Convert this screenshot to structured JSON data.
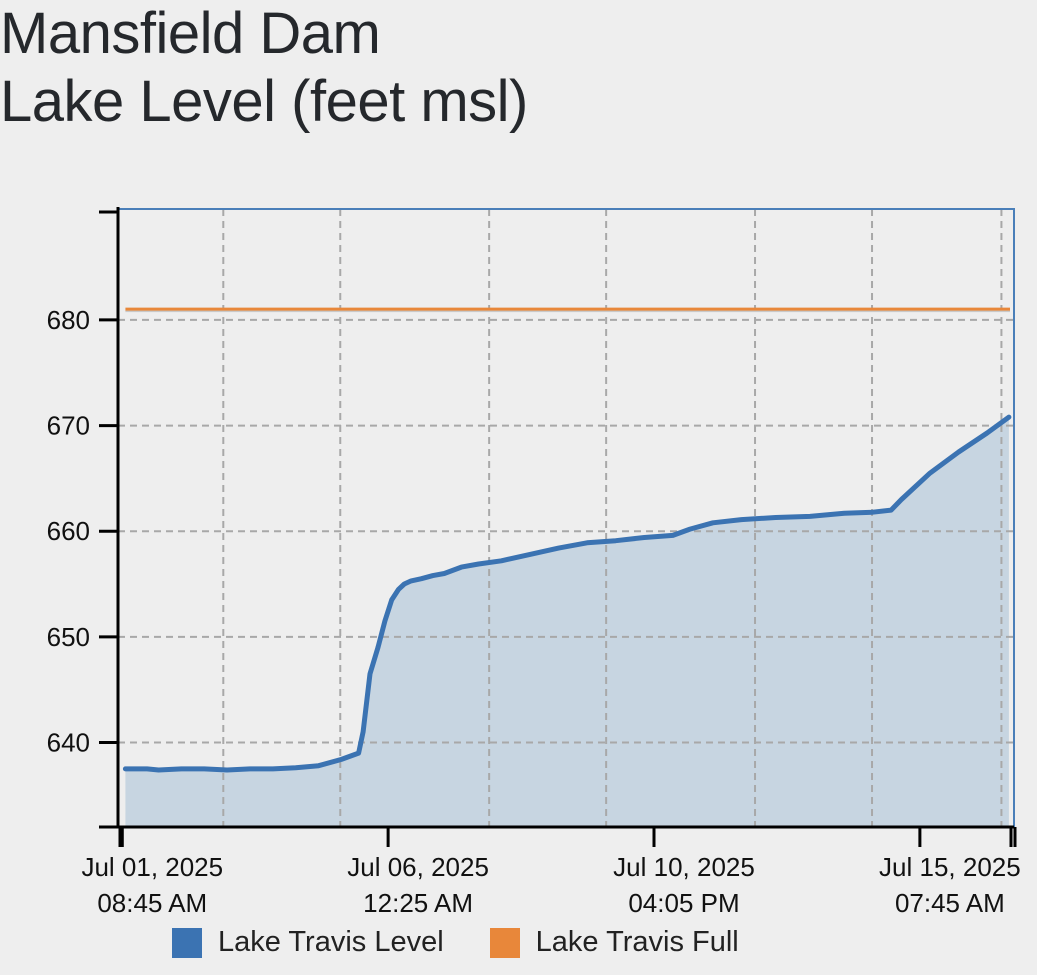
{
  "title": {
    "line1": "Mansfield Dam",
    "line2": "Lake Level (feet msl)"
  },
  "chart_data": {
    "type": "area",
    "title": "Mansfield Dam Lake Level (feet msl)",
    "xlabel": "",
    "ylabel": "",
    "x_unit": "days since Jul 01, 2025 12:00 AM",
    "xlim": [
      0.29,
      15.97
    ],
    "ylim": [
      632,
      690.5
    ],
    "y_ticks": [
      640,
      650,
      660,
      670,
      680
    ],
    "x_ticks": [
      {
        "x": 0.365,
        "line1": "Jul 01, 2025",
        "line2": "08:45 AM"
      },
      {
        "x": 5.017,
        "line1": "Jul 06, 2025",
        "line2": "12:25 AM"
      },
      {
        "x": 9.67,
        "line1": "Jul 10, 2025",
        "line2": "04:05 PM"
      },
      {
        "x": 14.323,
        "line1": "Jul 15, 2025",
        "line2": "07:45 AM"
      }
    ],
    "grid": true,
    "legend_position": "bottom",
    "colors": {
      "level": "#3b73b2",
      "level_fill": "#c7d5e1",
      "full": "#e8873a",
      "frame": "#4a7fb9",
      "grid": "#a8a8a8"
    },
    "series": [
      {
        "name": "Lake Travis Level",
        "x": [
          0.42,
          0.8,
          1.0,
          1.4,
          1.8,
          2.2,
          2.6,
          3.0,
          3.4,
          3.8,
          4.2,
          4.5,
          4.58,
          4.7,
          4.84,
          4.96,
          5.08,
          5.2,
          5.3,
          5.42,
          5.6,
          5.8,
          6.0,
          6.3,
          6.6,
          7.0,
          7.5,
          8.0,
          8.5,
          9.0,
          9.5,
          10.0,
          10.3,
          10.7,
          11.2,
          11.8,
          12.4,
          13.0,
          13.5,
          13.82,
          14.0,
          14.5,
          15.0,
          15.5,
          15.88
        ],
        "values": [
          637.5,
          637.5,
          637.4,
          637.5,
          637.5,
          637.4,
          637.5,
          637.5,
          637.6,
          637.8,
          638.4,
          639.0,
          641.0,
          646.5,
          649.0,
          651.5,
          653.5,
          654.5,
          655.0,
          655.3,
          655.5,
          655.8,
          656.0,
          656.6,
          656.9,
          657.2,
          657.8,
          658.4,
          658.9,
          659.1,
          659.4,
          659.6,
          660.2,
          660.8,
          661.1,
          661.3,
          661.4,
          661.7,
          661.8,
          662.0,
          663.0,
          665.5,
          667.5,
          669.3,
          670.8
        ]
      },
      {
        "name": "Lake Travis Full",
        "x": [
          0.42,
          15.9
        ],
        "values": [
          681,
          681
        ]
      }
    ]
  }
}
